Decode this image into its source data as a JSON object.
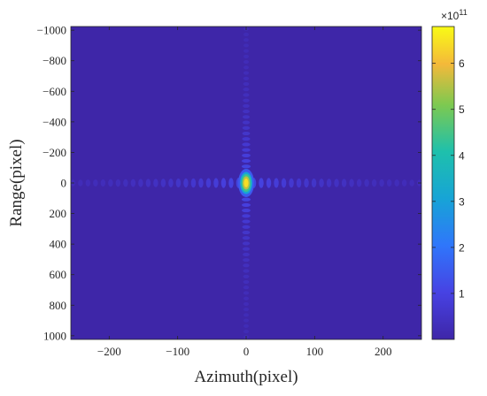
{
  "chart_data": {
    "type": "heatmap",
    "title": "",
    "xlabel": "Azimuth(pixel)",
    "ylabel": "Range(pixel)",
    "xlim": [
      -256,
      256
    ],
    "ylim": [
      -1024,
      1024
    ],
    "y_reversed": true,
    "x_ticks": [
      -200,
      -100,
      0,
      100,
      200
    ],
    "y_ticks": [
      -1000,
      -800,
      -600,
      -400,
      -200,
      0,
      200,
      400,
      600,
      800,
      1000
    ],
    "x_tick_labels": [
      "−200",
      "−100",
      "0",
      "100",
      "200"
    ],
    "y_tick_labels": [
      "−1000",
      "−800",
      "−600",
      "−400",
      "−200",
      "0",
      "200",
      "400",
      "600",
      "800",
      "1000"
    ],
    "colormap": "parula",
    "background_color": "#3e26a8",
    "peak": {
      "x": 0,
      "y": 0,
      "value": 680000000000.0
    },
    "azimuth_sidelobe_spacing": 11,
    "range_sidelobe_spacing": 36,
    "colorbar": {
      "range": [
        0,
        6.8
      ],
      "ticks": [
        1,
        2,
        3,
        4,
        5,
        6
      ],
      "tick_labels": [
        "1",
        "2",
        "3",
        "4",
        "5",
        "6"
      ],
      "exponent_base": "×10",
      "exponent_power": "11"
    }
  }
}
